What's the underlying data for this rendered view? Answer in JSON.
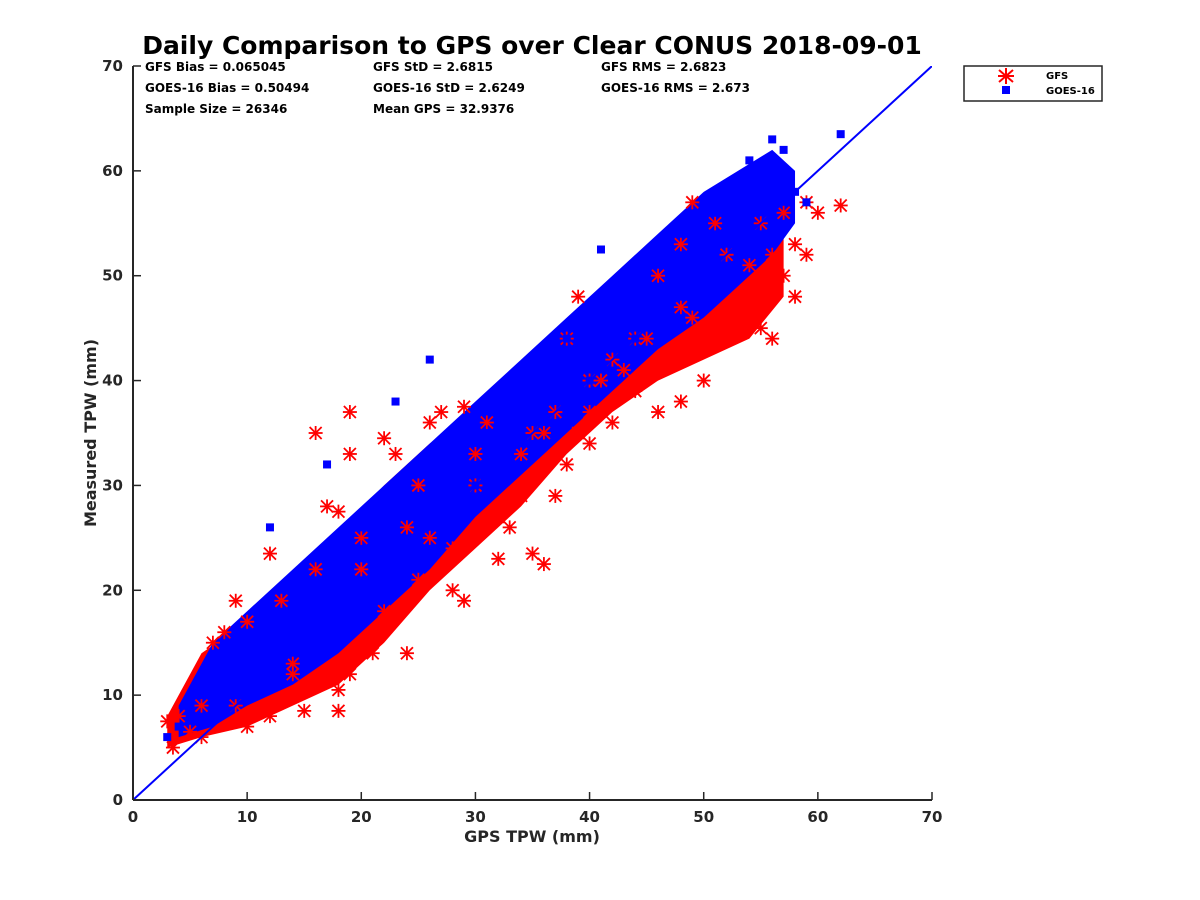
{
  "chart_data": {
    "type": "scatter",
    "title": "Daily Comparison to GPS over Clear CONUS 2018-09-01",
    "xlabel": "GPS TPW (mm)",
    "ylabel": "Measured TPW (mm)",
    "xlim": [
      0,
      70
    ],
    "ylim": [
      0,
      70
    ],
    "xticks": [
      "0",
      "10",
      "20",
      "30",
      "40",
      "50",
      "60",
      "70"
    ],
    "yticks": [
      "0",
      "10",
      "20",
      "30",
      "40",
      "50",
      "60",
      "70"
    ],
    "grid": false,
    "legend_position": "outside-top-right",
    "reference_line": {
      "name": "1:1 line",
      "x": [
        0,
        70
      ],
      "y": [
        0,
        70
      ],
      "color": "#0000ff"
    },
    "stats": {
      "gfs_bias": "GFS Bias = 0.065045",
      "gfs_std": "GFS StD = 2.6815",
      "gfs_rms": "GFS RMS = 2.6823",
      "goes_bias": "GOES-16 Bias = 0.50494",
      "goes_std": "GOES-16 StD = 2.6249",
      "goes_rms": "GOES-16 RMS = 2.673",
      "sample_size": "Sample Size = 26346",
      "mean_gps": "Mean GPS = 32.9376"
    },
    "series": [
      {
        "name": "GFS",
        "marker": "asterisk",
        "color": "#ff0000",
        "points": [
          [
            3,
            7.5
          ],
          [
            3.5,
            5
          ],
          [
            4,
            8
          ],
          [
            5,
            6.5
          ],
          [
            6,
            9
          ],
          [
            7,
            15
          ],
          [
            8,
            16
          ],
          [
            9,
            19
          ],
          [
            10,
            17
          ],
          [
            10,
            7
          ],
          [
            12,
            23.5
          ],
          [
            12,
            8
          ],
          [
            13,
            19
          ],
          [
            14,
            12
          ],
          [
            15,
            8.5
          ],
          [
            16,
            22
          ],
          [
            16,
            35
          ],
          [
            17,
            28
          ],
          [
            18,
            8.5
          ],
          [
            18,
            10.5
          ],
          [
            18,
            27.5
          ],
          [
            19,
            37
          ],
          [
            19,
            33
          ],
          [
            19,
            12
          ],
          [
            20,
            25
          ],
          [
            21,
            14
          ],
          [
            22,
            34.5
          ],
          [
            22,
            18
          ],
          [
            23,
            33
          ],
          [
            24,
            14
          ],
          [
            25,
            21
          ],
          [
            25,
            30
          ],
          [
            26,
            36
          ],
          [
            27,
            37
          ],
          [
            28,
            20
          ],
          [
            28,
            24
          ],
          [
            29,
            19
          ],
          [
            29,
            37.5
          ],
          [
            30,
            33
          ],
          [
            31,
            36
          ],
          [
            32,
            27
          ],
          [
            32,
            23
          ],
          [
            33,
            26
          ],
          [
            34,
            29
          ],
          [
            35,
            23.5
          ],
          [
            35,
            35
          ],
          [
            36,
            22.5
          ],
          [
            37,
            29
          ],
          [
            37,
            37
          ],
          [
            38,
            32
          ],
          [
            38,
            44
          ],
          [
            39,
            35
          ],
          [
            39,
            48
          ],
          [
            40,
            37
          ],
          [
            40,
            34
          ],
          [
            41,
            40
          ],
          [
            42,
            36
          ],
          [
            43,
            41
          ],
          [
            44,
            39
          ],
          [
            45,
            44
          ],
          [
            46,
            37
          ],
          [
            46,
            50
          ],
          [
            47,
            42
          ],
          [
            48,
            38
          ],
          [
            48,
            53
          ],
          [
            49,
            46
          ],
          [
            49,
            57
          ],
          [
            50,
            45
          ],
          [
            50,
            40
          ],
          [
            51,
            55
          ],
          [
            52,
            46
          ],
          [
            53,
            47
          ],
          [
            54,
            48
          ],
          [
            54,
            51
          ],
          [
            55,
            45
          ],
          [
            55,
            55
          ],
          [
            56,
            44
          ],
          [
            56,
            52
          ],
          [
            57,
            50
          ],
          [
            57,
            56
          ],
          [
            58,
            53
          ],
          [
            58,
            48
          ],
          [
            59,
            52
          ],
          [
            59,
            57
          ],
          [
            60,
            56
          ],
          [
            62,
            56.7
          ],
          [
            20,
            22
          ],
          [
            24,
            26
          ],
          [
            30,
            30
          ],
          [
            34,
            33
          ],
          [
            40,
            40
          ],
          [
            44,
            44
          ],
          [
            48,
            47
          ],
          [
            36,
            35
          ],
          [
            26,
            25
          ],
          [
            14,
            13
          ],
          [
            9,
            9
          ],
          [
            6,
            6
          ],
          [
            52,
            52
          ],
          [
            42,
            42
          ]
        ]
      },
      {
        "name": "GOES-16",
        "marker": "square",
        "color": "#0000ff",
        "points": [
          [
            3,
            6
          ],
          [
            4,
            7
          ],
          [
            5,
            8
          ],
          [
            6,
            10
          ],
          [
            7,
            11
          ],
          [
            8,
            12
          ],
          [
            9,
            10
          ],
          [
            10,
            13
          ],
          [
            11,
            14
          ],
          [
            12,
            15
          ],
          [
            12,
            26
          ],
          [
            13,
            17
          ],
          [
            14,
            18
          ],
          [
            15,
            17
          ],
          [
            16,
            20
          ],
          [
            17,
            32
          ],
          [
            18,
            22
          ],
          [
            19,
            24
          ],
          [
            20,
            26
          ],
          [
            21,
            27
          ],
          [
            22,
            28
          ],
          [
            23,
            38
          ],
          [
            24,
            30
          ],
          [
            25,
            29
          ],
          [
            26,
            42
          ],
          [
            27,
            32
          ],
          [
            28,
            34
          ],
          [
            29,
            33
          ],
          [
            30,
            36
          ],
          [
            31,
            35
          ],
          [
            32,
            37
          ],
          [
            33,
            39
          ],
          [
            34,
            38
          ],
          [
            35,
            40
          ],
          [
            36,
            41
          ],
          [
            37,
            42
          ],
          [
            38,
            44
          ],
          [
            39,
            45
          ],
          [
            40,
            46
          ],
          [
            41,
            45
          ],
          [
            42,
            48
          ],
          [
            43,
            49
          ],
          [
            44,
            50
          ],
          [
            45,
            51
          ],
          [
            46,
            53
          ],
          [
            47,
            52
          ],
          [
            48,
            54
          ],
          [
            49,
            55
          ],
          [
            50,
            57
          ],
          [
            51,
            56
          ],
          [
            52,
            58
          ],
          [
            53,
            59
          ],
          [
            54,
            61
          ],
          [
            55,
            60
          ],
          [
            56,
            63
          ],
          [
            57,
            62
          ],
          [
            58,
            58
          ],
          [
            59,
            57
          ],
          [
            62,
            63.5
          ],
          [
            41,
            52.5
          ],
          [
            36,
            34
          ],
          [
            40,
            40
          ],
          [
            44,
            44
          ],
          [
            30,
            30
          ],
          [
            20,
            20
          ],
          [
            10,
            10
          ],
          [
            48,
            48
          ],
          [
            34,
            34
          ],
          [
            24,
            24
          ],
          [
            15,
            15
          ]
        ]
      }
    ]
  },
  "legend": {
    "items": [
      {
        "label": "GFS",
        "color": "#ff0000",
        "marker": "asterisk"
      },
      {
        "label": "GOES-16",
        "color": "#0000ff",
        "marker": "square"
      }
    ]
  }
}
